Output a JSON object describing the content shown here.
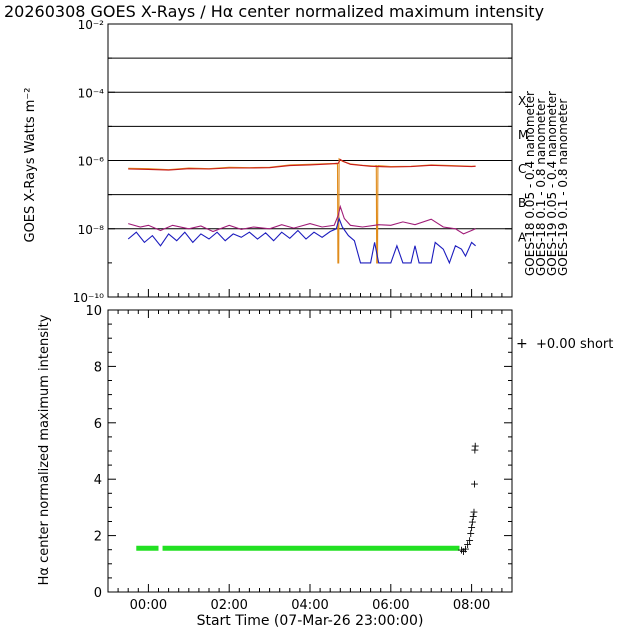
{
  "title": "20260308 GOES X-Rays / Hα center normalized maximum intensity",
  "chart_data": [
    {
      "type": "line",
      "ylabel": "GOES X-Rays Watts m⁻²",
      "yscale": "log",
      "ylim_exp": [
        -10,
        -2
      ],
      "ytick_labels": [
        {
          "exp": -2,
          "label": "10⁻²"
        },
        {
          "exp": -4,
          "label": "10⁻⁴"
        },
        {
          "exp": -6,
          "label": "10⁻⁶"
        },
        {
          "exp": -8,
          "label": "10⁻⁸"
        },
        {
          "exp": -10,
          "label": "10⁻¹⁰"
        }
      ],
      "flare_classes": [
        {
          "label": "X",
          "exp": -4.25
        },
        {
          "label": "M",
          "exp": -5.25
        },
        {
          "label": "C",
          "exp": -6.25
        },
        {
          "label": "B",
          "exp": -7.25
        },
        {
          "label": "A",
          "exp": -8.25
        }
      ],
      "grid_exps": [
        -3,
        -4,
        -5,
        -6,
        -7,
        -8
      ],
      "xlim_hours": [
        -1.0,
        9.0
      ],
      "legend": [
        {
          "label": "GOES-18 0.05 - 0.4 nanometer",
          "color": "#1c1cbe"
        },
        {
          "label": "GOES-18 0.1 - 0.8 nanometer",
          "color": "#c81c1c"
        },
        {
          "label": "GOES-19 0.05 - 0.4 nanometer",
          "color": "#a01c78"
        },
        {
          "label": "GOES-19 0.1 - 0.8 nanometer",
          "color": "#e08c1c"
        }
      ],
      "series": [
        {
          "name": "GOES-19 0.1 - 0.8 nanometer",
          "color": "#e08c1c",
          "points": [
            [
              -0.5,
              -6.23
            ],
            [
              0,
              -6.24
            ],
            [
              0.5,
              -6.27
            ],
            [
              1,
              -6.22
            ],
            [
              1.5,
              -6.24
            ],
            [
              2,
              -6.2
            ],
            [
              2.5,
              -6.21
            ],
            [
              3,
              -6.2
            ],
            [
              3.5,
              -6.13
            ],
            [
              4,
              -6.11
            ],
            [
              4.5,
              -6.09
            ],
            [
              4.68,
              -6.1
            ],
            [
              4.69,
              -9.0
            ],
            [
              4.71,
              -9.0
            ],
            [
              4.72,
              -5.95
            ],
            [
              4.8,
              -6.02
            ],
            [
              5,
              -6.1
            ],
            [
              5.3,
              -6.14
            ],
            [
              5.6,
              -6.16
            ],
            [
              5.64,
              -6.15
            ],
            [
              5.65,
              -9.0
            ],
            [
              5.67,
              -9.0
            ],
            [
              5.68,
              -6.15
            ],
            [
              6,
              -6.18
            ],
            [
              6.5,
              -6.17
            ],
            [
              7,
              -6.13
            ],
            [
              7.5,
              -6.15
            ],
            [
              8,
              -6.17
            ],
            [
              8.1,
              -6.16
            ]
          ]
        },
        {
          "name": "GOES-18 0.1 - 0.8 nanometer",
          "color": "#c81c1c",
          "points": [
            [
              -0.5,
              -6.25
            ],
            [
              0,
              -6.26
            ],
            [
              0.5,
              -6.28
            ],
            [
              1,
              -6.24
            ],
            [
              1.5,
              -6.25
            ],
            [
              2,
              -6.22
            ],
            [
              2.5,
              -6.22
            ],
            [
              3,
              -6.21
            ],
            [
              3.5,
              -6.15
            ],
            [
              4,
              -6.13
            ],
            [
              4.5,
              -6.1
            ],
            [
              4.7,
              -6.08
            ],
            [
              4.75,
              -5.97
            ],
            [
              4.85,
              -6.04
            ],
            [
              5,
              -6.11
            ],
            [
              5.5,
              -6.17
            ],
            [
              6,
              -6.19
            ],
            [
              6.5,
              -6.18
            ],
            [
              7,
              -6.14
            ],
            [
              7.5,
              -6.16
            ],
            [
              8,
              -6.18
            ],
            [
              8.1,
              -6.17
            ]
          ]
        },
        {
          "name": "GOES-19 0.05 - 0.4 nanometer",
          "color": "#a01c78",
          "points": [
            [
              -0.5,
              -7.85
            ],
            [
              -0.2,
              -7.95
            ],
            [
              0,
              -7.9
            ],
            [
              0.3,
              -8.05
            ],
            [
              0.6,
              -7.9
            ],
            [
              1,
              -8.0
            ],
            [
              1.3,
              -7.92
            ],
            [
              1.6,
              -8.08
            ],
            [
              2,
              -7.9
            ],
            [
              2.3,
              -8.02
            ],
            [
              2.6,
              -7.95
            ],
            [
              3,
              -8.0
            ],
            [
              3.3,
              -7.88
            ],
            [
              3.6,
              -7.98
            ],
            [
              4,
              -7.85
            ],
            [
              4.3,
              -7.95
            ],
            [
              4.6,
              -7.9
            ],
            [
              4.7,
              -7.6
            ],
            [
              4.75,
              -7.35
            ],
            [
              4.85,
              -7.7
            ],
            [
              5,
              -7.9
            ],
            [
              5.3,
              -7.95
            ],
            [
              5.6,
              -7.9
            ],
            [
              5.7,
              -7.88
            ],
            [
              6,
              -7.9
            ],
            [
              6.3,
              -7.8
            ],
            [
              6.6,
              -7.88
            ],
            [
              7,
              -7.72
            ],
            [
              7.3,
              -7.95
            ],
            [
              7.6,
              -8.0
            ],
            [
              7.8,
              -8.15
            ],
            [
              8,
              -8.05
            ],
            [
              8.1,
              -8.0
            ]
          ]
        },
        {
          "name": "GOES-18 0.05 - 0.4 nanometer",
          "color": "#1c1cbe",
          "points": [
            [
              -0.5,
              -8.3
            ],
            [
              -0.3,
              -8.1
            ],
            [
              -0.1,
              -8.4
            ],
            [
              0.1,
              -8.2
            ],
            [
              0.3,
              -8.5
            ],
            [
              0.5,
              -8.15
            ],
            [
              0.7,
              -8.35
            ],
            [
              0.9,
              -8.1
            ],
            [
              1.1,
              -8.4
            ],
            [
              1.3,
              -8.15
            ],
            [
              1.5,
              -8.3
            ],
            [
              1.7,
              -8.1
            ],
            [
              1.9,
              -8.35
            ],
            [
              2.1,
              -8.15
            ],
            [
              2.3,
              -8.25
            ],
            [
              2.5,
              -8.1
            ],
            [
              2.7,
              -8.3
            ],
            [
              2.9,
              -8.12
            ],
            [
              3.1,
              -8.35
            ],
            [
              3.3,
              -8.1
            ],
            [
              3.5,
              -8.28
            ],
            [
              3.7,
              -8.05
            ],
            [
              3.9,
              -8.3
            ],
            [
              4.1,
              -8.1
            ],
            [
              4.3,
              -8.25
            ],
            [
              4.5,
              -8.08
            ],
            [
              4.65,
              -8.0
            ],
            [
              4.72,
              -7.7
            ],
            [
              4.8,
              -7.95
            ],
            [
              4.95,
              -8.2
            ],
            [
              5.1,
              -8.35
            ],
            [
              5.25,
              -9.0
            ],
            [
              5.5,
              -9.0
            ],
            [
              5.6,
              -8.4
            ],
            [
              5.7,
              -9.0
            ],
            [
              6.0,
              -9.0
            ],
            [
              6.15,
              -8.5
            ],
            [
              6.3,
              -9.0
            ],
            [
              6.5,
              -9.0
            ],
            [
              6.6,
              -8.5
            ],
            [
              6.7,
              -9.0
            ],
            [
              7.0,
              -9.0
            ],
            [
              7.1,
              -8.4
            ],
            [
              7.3,
              -8.6
            ],
            [
              7.45,
              -9.0
            ],
            [
              7.6,
              -8.5
            ],
            [
              7.75,
              -8.6
            ],
            [
              7.85,
              -8.8
            ],
            [
              8.0,
              -8.4
            ],
            [
              8.1,
              -8.5
            ]
          ]
        }
      ]
    },
    {
      "type": "scatter",
      "ylabel": "Hα center normalized maximum intensity",
      "xlabel": "Start Time (07-Mar-26 23:00:00)",
      "ylim": [
        0,
        10
      ],
      "yticks": [
        "0",
        "2",
        "4",
        "6",
        "8",
        "10"
      ],
      "xlim_hours": [
        -1.0,
        9.0
      ],
      "xticks": [
        {
          "hour": 0,
          "label": "00:00"
        },
        {
          "hour": 2,
          "label": "02:00"
        },
        {
          "hour": 4,
          "label": "04:00"
        },
        {
          "hour": 6,
          "label": "06:00"
        },
        {
          "hour": 8,
          "label": "08:00"
        }
      ],
      "color": "#22e022",
      "legend": {
        "marker": "+",
        "label": "+0.00 short"
      },
      "baseline_segments": [
        {
          "x_start": -0.3,
          "x_end": 0.25,
          "y": 1.55
        },
        {
          "x_start": 0.35,
          "x_end": 7.7,
          "y": 1.55
        }
      ],
      "points": [
        [
          7.75,
          1.5
        ],
        [
          7.8,
          1.45
        ],
        [
          7.85,
          1.55
        ],
        [
          7.9,
          1.7
        ],
        [
          7.95,
          1.85
        ],
        [
          7.98,
          2.1
        ],
        [
          8.0,
          2.3
        ],
        [
          8.02,
          2.5
        ],
        [
          8.04,
          2.7
        ],
        [
          8.06,
          2.85
        ],
        [
          8.07,
          3.85
        ],
        [
          8.08,
          5.05
        ],
        [
          8.09,
          5.2
        ]
      ]
    }
  ]
}
